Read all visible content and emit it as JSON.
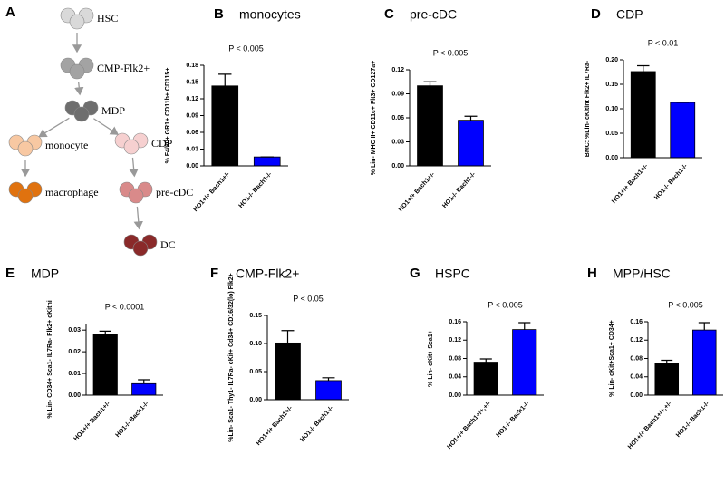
{
  "diagram": {
    "panel": "A",
    "nodes": [
      {
        "label": "HSC"
      },
      {
        "label": "CMP-Flk2+"
      },
      {
        "label": "MDP"
      },
      {
        "label": "monocyte"
      },
      {
        "label": "CDP"
      },
      {
        "label": "macrophage"
      },
      {
        "label": "pre-cDC"
      },
      {
        "label": "DC"
      }
    ]
  },
  "chart_data": [
    {
      "type": "bar",
      "panel": "B",
      "title": "monocytes",
      "annotation": "P < 0.005",
      "y_label": "% F4/80+ GR1+ CD11b+ CD115+",
      "categories": [
        "HO1+/+ Bach1+/-",
        "HO1-/- Bach1-/-"
      ],
      "values": [
        0.143,
        0.016
      ],
      "errors": [
        0.021,
        0
      ],
      "colors": [
        "#000000",
        "#0000ff"
      ],
      "ylim": [
        0,
        0.18
      ],
      "yticks": [
        {
          "value": 0,
          "label": "0.00"
        },
        0.03,
        0.06,
        0.09,
        0.12,
        0.15,
        0.18
      ]
    },
    {
      "type": "bar",
      "panel": "C",
      "title": "pre-cDC",
      "annotation": "P < 0.005",
      "y_label": "% Lin- MHC II+ CD11c+ Flt3+ CD127a+",
      "categories": [
        "HO1+/+ Bach1+/-",
        "HO1-/- Bach1-/-"
      ],
      "values": [
        0.1,
        0.057
      ],
      "errors": [
        0.005,
        0.005
      ],
      "colors": [
        "#000000",
        "#0000ff"
      ],
      "ylim": [
        0,
        0.12
      ],
      "yticks": [
        {
          "value": 0,
          "label": "0.00"
        },
        0.03,
        0.06,
        0.09,
        0.12
      ]
    },
    {
      "type": "bar",
      "panel": "D",
      "title": "CDP",
      "annotation": "P < 0.01",
      "y_label": "BMC: %Lin- cKitint Flk2+ IL7Ra-",
      "categories": [
        "HO1+/+ Bach1+/-",
        "HO1-/- Bach1-/-"
      ],
      "values": [
        0.176,
        0.113
      ],
      "errors": [
        0.012,
        0
      ],
      "colors": [
        "#000000",
        "#0000ff"
      ],
      "ylim": [
        0,
        0.2
      ],
      "yticks": [
        {
          "value": 0,
          "label": "0.00"
        },
        0.05,
        {
          "value": 0.1,
          "label": "0.10"
        },
        0.15,
        {
          "value": 0.2,
          "label": "0.20"
        }
      ]
    },
    {
      "type": "bar",
      "panel": "E",
      "title": "MDP",
      "annotation": "P < 0.0001",
      "y_label": "% Lin- CD34+ Sca1- IL7Ra- Flk2+ cKithi",
      "categories": [
        "HO1+/+ Bach1+/-",
        "HO1-/- Bach1-/-"
      ],
      "values": [
        0.028,
        0.0053
      ],
      "errors": [
        0.0015,
        0.0018
      ],
      "colors": [
        "#000000",
        "#0000ff"
      ],
      "ylim": [
        0,
        0.033
      ],
      "yticks": [
        {
          "value": 0,
          "label": "0.00"
        },
        0.01,
        0.02,
        0.03
      ]
    },
    {
      "type": "bar",
      "panel": "F",
      "title": "CMP-Flk2+",
      "annotation": "P < 0.05",
      "y_label": "%Lin- Sca1- Thy1- IL7Ra- cKit+ Cd34+ CD16/32(lo) Flk2+",
      "categories": [
        "HO1+/+ Bach1+/-",
        "HO1-/- Bach1-/-"
      ],
      "values": [
        0.101,
        0.034
      ],
      "errors": [
        0.022,
        0.005
      ],
      "colors": [
        "#000000",
        "#0000ff"
      ],
      "ylim": [
        0,
        0.15
      ],
      "yticks": [
        {
          "value": 0,
          "label": "0.00"
        },
        0.05,
        {
          "value": 0.1,
          "label": "0.10"
        },
        0.15
      ]
    },
    {
      "type": "bar",
      "panel": "G",
      "title": "HSPC",
      "annotation": "P < 0.005",
      "y_label": "% Lin- cKit+ Sca1+",
      "categories": [
        "HO1+/+ Bach1+/+,+/-",
        "HO1-/- Bach1-/-"
      ],
      "values": [
        0.072,
        0.143
      ],
      "errors": [
        0.007,
        0.015
      ],
      "colors": [
        "#000000",
        "#0000ff"
      ],
      "ylim": [
        0,
        0.16
      ],
      "yticks": [
        {
          "value": 0,
          "label": "0.00"
        },
        0.04,
        0.08,
        0.12,
        0.16
      ]
    },
    {
      "type": "bar",
      "panel": "H",
      "title": "MPP/HSC",
      "annotation": "P < 0.005",
      "y_label": "% Lin- cKit+Sca1+ CD34+",
      "categories": [
        "HO1+/+ Bach1+/+,+/-",
        "HO1-/- Bach1-/-"
      ],
      "values": [
        0.069,
        0.142
      ],
      "errors": [
        0.007,
        0.016
      ],
      "colors": [
        "#000000",
        "#0000ff"
      ],
      "ylim": [
        0,
        0.16
      ],
      "yticks": [
        {
          "value": 0,
          "label": "0.00"
        },
        0.04,
        0.08,
        0.12,
        0.16
      ]
    }
  ]
}
